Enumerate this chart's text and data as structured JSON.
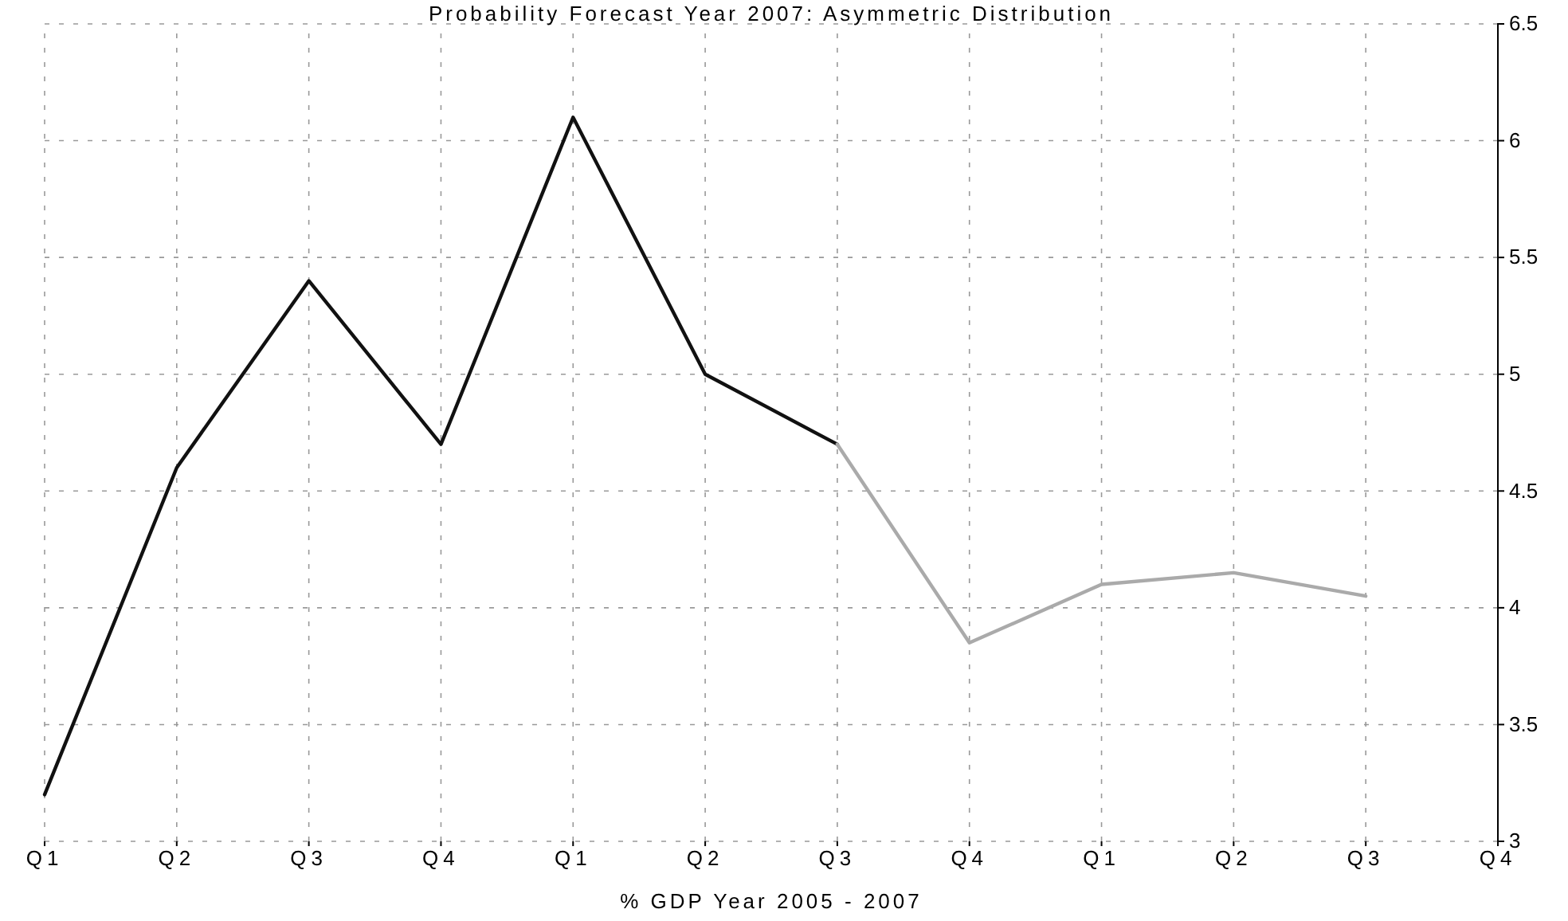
{
  "chart_data": {
    "type": "line",
    "title": "Probability Forecast Year 2007: Asymmetric Distribution",
    "xlabel": "% GDP Year 2005 - 2007",
    "categories": [
      "Q1",
      "Q2",
      "Q3",
      "Q4",
      "Q1",
      "Q2",
      "Q3",
      "Q4",
      "Q1",
      "Q2",
      "Q3",
      "Q4"
    ],
    "series": [
      {
        "color": "#111111",
        "values": [
          3.2,
          4.6,
          5.4,
          4.7,
          6.1,
          5.0,
          4.7,
          null,
          null,
          null,
          null,
          null
        ]
      },
      {
        "color": "#aaaaaa",
        "values": [
          null,
          null,
          null,
          null,
          null,
          null,
          4.7,
          3.85,
          4.1,
          4.15,
          4.05,
          null
        ]
      }
    ],
    "ylim": [
      3,
      6.5
    ],
    "yticks": [
      3,
      3.5,
      4,
      4.5,
      5,
      5.5,
      6,
      6.5
    ],
    "grid": true,
    "line_style": "solid"
  }
}
